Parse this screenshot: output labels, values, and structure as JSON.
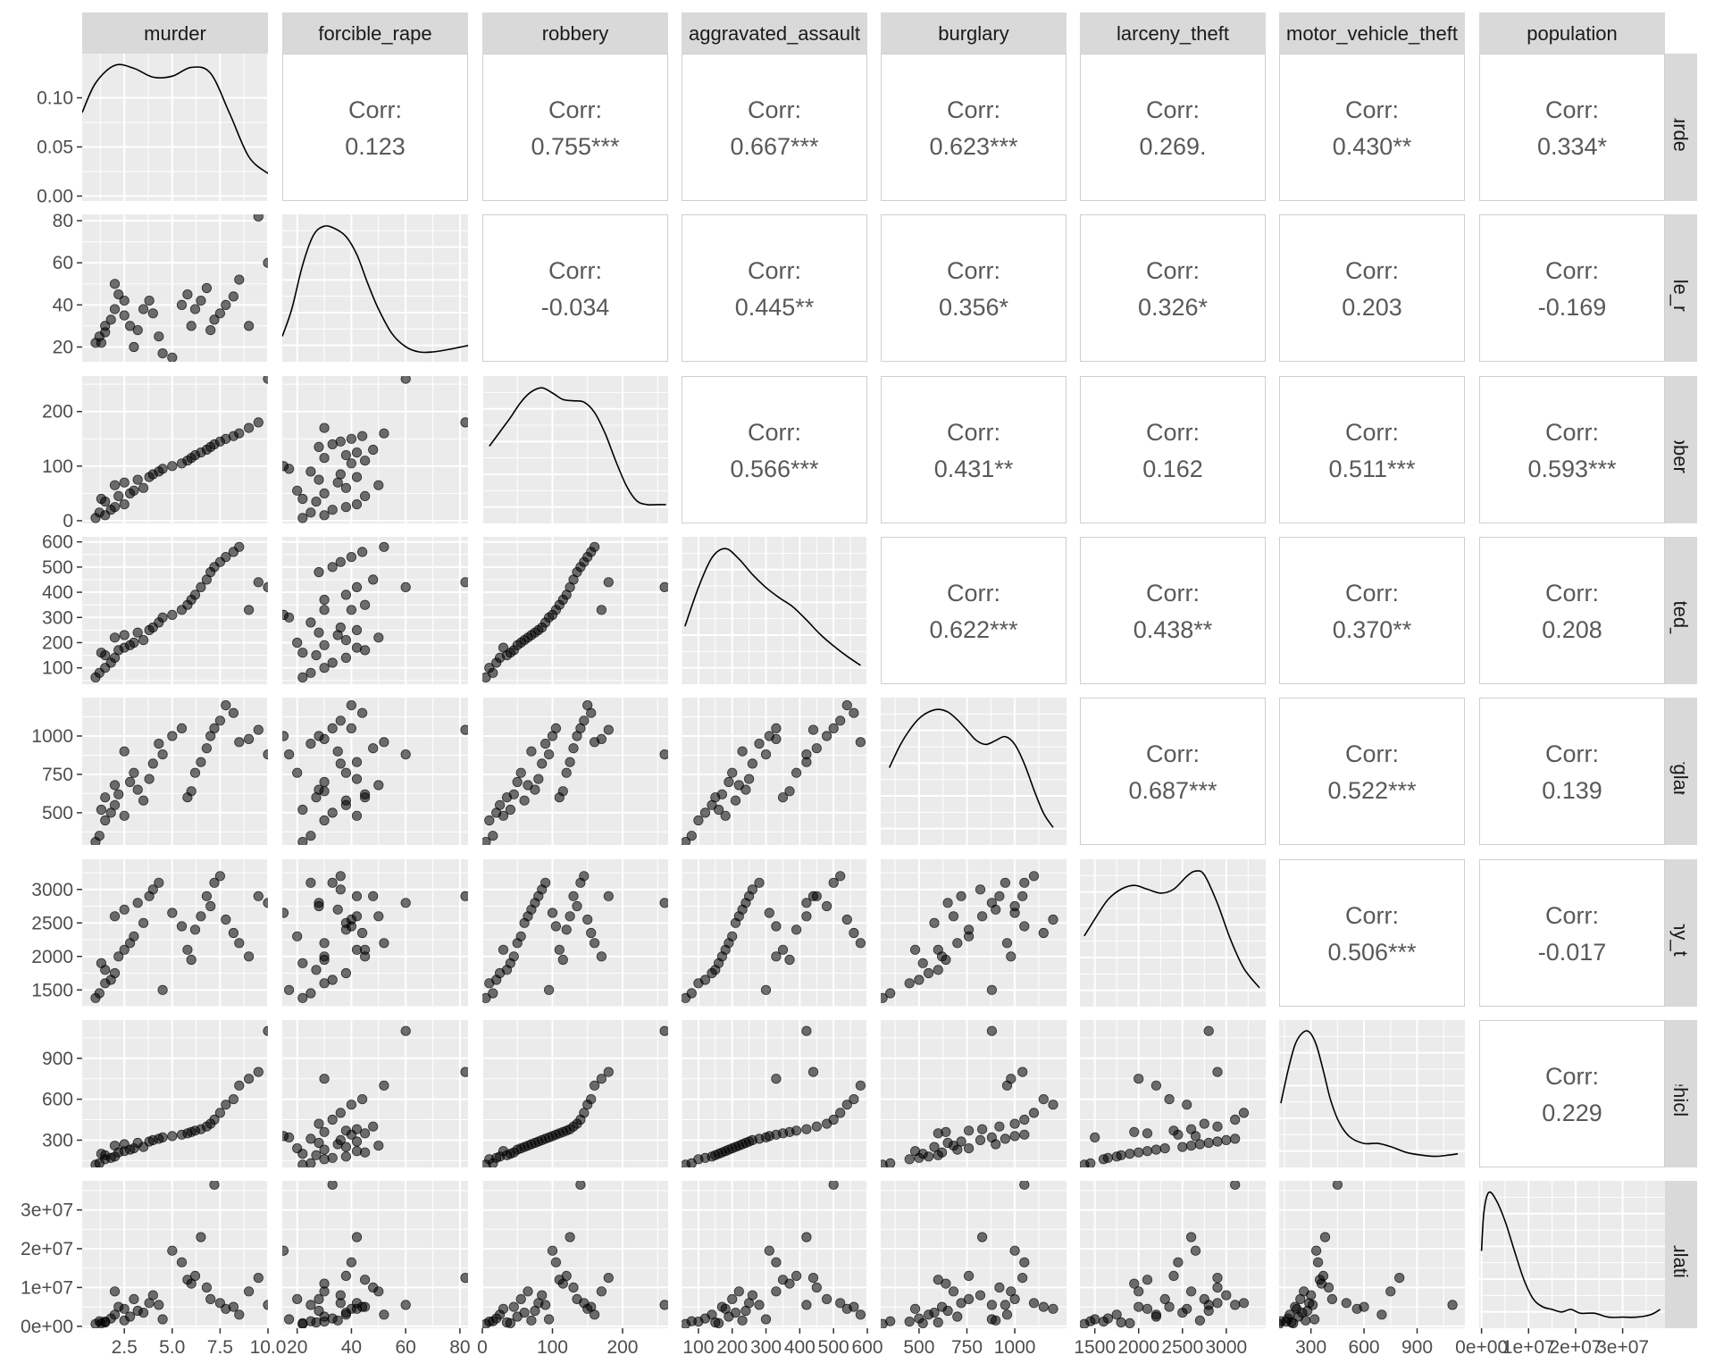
{
  "chart_data": {
    "type": "scatter-matrix",
    "title": "",
    "variables": [
      "murder",
      "forcible_rape",
      "robbery",
      "aggravated_assault",
      "burglary",
      "larceny_theft",
      "motor_vehicle_theft",
      "population"
    ],
    "row_strip_labels": [
      "murder",
      "forcible_rape",
      "robbery",
      "ggravated_assa",
      "burglary",
      "larceny_theft",
      "otor_vehicle_the",
      "population"
    ],
    "corr_label": "Corr:",
    "correlations": [
      [
        "",
        "0.123",
        "0.755***",
        "0.667***",
        "0.623***",
        "0.269.",
        "0.430**",
        "0.334*"
      ],
      [
        "",
        "",
        "-0.034",
        "0.445**",
        "0.356*",
        "0.326*",
        "0.203",
        "-0.169"
      ],
      [
        "",
        "",
        "",
        "0.566***",
        "0.431**",
        "0.162",
        "0.511***",
        "0.593***"
      ],
      [
        "",
        "",
        "",
        "",
        "0.622***",
        "0.438**",
        "0.370**",
        "0.208"
      ],
      [
        "",
        "",
        "",
        "",
        "",
        "0.687***",
        "0.522***",
        "0.139"
      ],
      [
        "",
        "",
        "",
        "",
        "",
        "",
        "0.506***",
        "-0.017"
      ],
      [
        "",
        "",
        "",
        "",
        "",
        "",
        "",
        "0.229"
      ],
      [
        "",
        "",
        "",
        "",
        "",
        "",
        "",
        ""
      ]
    ],
    "x_axes": [
      {
        "range": [
          0.3,
          10.0
        ],
        "ticks": [
          2.5,
          5.0,
          7.5,
          10.0
        ],
        "labels": [
          "2.5",
          "5.0",
          "7.5",
          "10.0"
        ]
      },
      {
        "range": [
          14.5,
          83
        ],
        "ticks": [
          20,
          40,
          60,
          80
        ],
        "labels": [
          "20",
          "40",
          "60",
          "80"
        ]
      },
      {
        "range": [
          0,
          265
        ],
        "ticks": [
          0,
          100,
          200
        ],
        "labels": [
          "0",
          "100",
          "200"
        ]
      },
      {
        "range": [
          50,
          600
        ],
        "ticks": [
          100,
          200,
          300,
          400,
          500,
          600
        ],
        "labels": [
          "100",
          "200",
          "300",
          "400",
          "500",
          "600"
        ]
      },
      {
        "range": [
          300,
          1270
        ],
        "ticks": [
          500,
          750,
          1000
        ],
        "labels": [
          "500",
          "750",
          "1000"
        ]
      },
      {
        "range": [
          1330,
          3450
        ],
        "ticks": [
          1500,
          2000,
          2500,
          3000
        ],
        "labels": [
          "1500",
          "2000",
          "2500",
          "3000"
        ]
      },
      {
        "range": [
          120,
          1170
        ],
        "ticks": [
          300,
          600,
          900
        ],
        "labels": [
          "300",
          "600",
          "900"
        ]
      },
      {
        "range": [
          -500000,
          39000000
        ],
        "ticks": [
          0,
          10000000,
          20000000,
          30000000
        ],
        "labels": [
          "0e+00",
          "1e+07",
          "2e+07",
          "3e+07"
        ]
      }
    ],
    "y_axes": [
      {
        "range": [
          -0.005,
          0.145
        ],
        "ticks": [
          0,
          0.05,
          0.1
        ],
        "labels": [
          "0.00",
          "0.05",
          "0.10"
        ]
      },
      {
        "range": [
          13,
          83
        ],
        "ticks": [
          20,
          40,
          60,
          80
        ],
        "labels": [
          "20",
          "40",
          "60",
          "80"
        ]
      },
      {
        "range": [
          -5,
          265
        ],
        "ticks": [
          0,
          100,
          200
        ],
        "labels": [
          "0",
          "100",
          "200"
        ]
      },
      {
        "range": [
          35,
          620
        ],
        "ticks": [
          100,
          200,
          300,
          400,
          500,
          600
        ],
        "labels": [
          "100",
          "200",
          "300",
          "400",
          "500",
          "600"
        ]
      },
      {
        "range": [
          290,
          1250
        ],
        "ticks": [
          500,
          750,
          1000
        ],
        "labels": [
          "500",
          "750",
          "1000"
        ]
      },
      {
        "range": [
          1250,
          3450
        ],
        "ticks": [
          1500,
          2000,
          2500,
          3000
        ],
        "labels": [
          "1500",
          "2000",
          "2500",
          "3000"
        ]
      },
      {
        "range": [
          100,
          1180
        ],
        "ticks": [
          300,
          600,
          900
        ],
        "labels": [
          "300",
          "600",
          "900"
        ]
      },
      {
        "range": [
          -500000,
          37500000
        ],
        "ticks": [
          0,
          10000000,
          20000000,
          30000000
        ],
        "labels": [
          "0e+00",
          "1e+07",
          "2e+07",
          "3e+07"
        ]
      }
    ],
    "density_curves": [
      {
        "variable": "murder",
        "x": [
          0.3,
          1.0,
          2.0,
          3.0,
          4.0,
          5.0,
          6.0,
          7.0,
          8.0,
          9.0,
          10.0
        ],
        "density": [
          0.085,
          0.115,
          0.133,
          0.13,
          0.121,
          0.122,
          0.131,
          0.125,
          0.084,
          0.04,
          0.023
        ]
      },
      {
        "variable": "forcible_rape",
        "x": [
          14.5,
          18,
          22,
          26,
          30,
          34,
          38,
          42,
          46,
          50,
          55,
          60,
          65,
          70,
          76,
          83
        ],
        "density": [
          0.15,
          0.36,
          0.7,
          0.93,
          1.0,
          0.98,
          0.92,
          0.78,
          0.56,
          0.36,
          0.17,
          0.07,
          0.03,
          0.03,
          0.05,
          0.08
        ]
      },
      {
        "variable": "robbery",
        "x": [
          10,
          25,
          40,
          55,
          70,
          85,
          100,
          115,
          130,
          145,
          160,
          175,
          190,
          205,
          220,
          235,
          250,
          262
        ],
        "density": [
          0.55,
          0.66,
          0.77,
          0.89,
          0.97,
          1.0,
          0.96,
          0.91,
          0.9,
          0.89,
          0.81,
          0.65,
          0.44,
          0.25,
          0.13,
          0.1,
          0.1,
          0.1
        ]
      },
      {
        "variable": "aggravated_assault",
        "x": [
          60,
          100,
          140,
          180,
          220,
          260,
          300,
          340,
          380,
          420,
          460,
          500,
          540,
          580
        ],
        "density": [
          0.4,
          0.7,
          0.93,
          1.0,
          0.92,
          0.8,
          0.7,
          0.62,
          0.55,
          0.45,
          0.34,
          0.25,
          0.17,
          0.1
        ]
      },
      {
        "variable": "burglary",
        "x": [
          345,
          400,
          450,
          500,
          550,
          600,
          650,
          700,
          750,
          800,
          850,
          900,
          950,
          1000,
          1050,
          1100,
          1150,
          1200
        ],
        "density": [
          0.55,
          0.72,
          0.84,
          0.93,
          0.98,
          1.0,
          0.98,
          0.92,
          0.84,
          0.76,
          0.73,
          0.76,
          0.79,
          0.73,
          0.58,
          0.38,
          0.2,
          0.09
        ]
      },
      {
        "variable": "larceny_theft",
        "x": [
          1380,
          1500,
          1650,
          1800,
          1950,
          2100,
          2250,
          2400,
          2550,
          2650,
          2750,
          2900,
          3050,
          3200,
          3380
        ],
        "density": [
          0.5,
          0.63,
          0.78,
          0.86,
          0.89,
          0.86,
          0.83,
          0.86,
          0.96,
          1.0,
          0.97,
          0.75,
          0.47,
          0.25,
          0.1
        ]
      },
      {
        "variable": "motor_vehicle_theft",
        "x": [
          130,
          170,
          210,
          250,
          290,
          330,
          370,
          410,
          460,
          520,
          600,
          680,
          760,
          840,
          920,
          1000,
          1080,
          1130
        ],
        "density": [
          0.45,
          0.7,
          0.9,
          0.99,
          1.0,
          0.9,
          0.7,
          0.48,
          0.3,
          0.19,
          0.14,
          0.14,
          0.11,
          0.07,
          0.05,
          0.04,
          0.05,
          0.06
        ]
      },
      {
        "variable": "population",
        "x": [
          0,
          500000,
          1500000,
          3000000,
          5000000,
          7000000,
          9000000,
          11000000,
          13000000,
          15000000,
          17000000,
          19000000,
          21000000,
          24000000,
          27000000,
          30000000,
          33000000,
          36000000,
          38000000
        ],
        "density": [
          0.55,
          0.85,
          1.0,
          0.95,
          0.78,
          0.55,
          0.33,
          0.18,
          0.12,
          0.1,
          0.08,
          0.1,
          0.07,
          0.07,
          0.04,
          0.04,
          0.04,
          0.06,
          0.1
        ]
      }
    ],
    "observations": {
      "fields": [
        "murder",
        "forcible_rape",
        "robbery",
        "aggravated_assault",
        "burglary",
        "larceny_theft",
        "motor_vehicle_theft",
        "population"
      ],
      "rows": [
        [
          1.0,
          22,
          5,
          62,
          310,
          1380,
          120,
          600000
        ],
        [
          1.2,
          25,
          15,
          80,
          350,
          1450,
          130,
          1300000
        ],
        [
          1.5,
          30,
          10,
          100,
          450,
          1600,
          160,
          1200000
        ],
        [
          1.8,
          33,
          20,
          120,
          500,
          1650,
          170,
          2000000
        ],
        [
          2.0,
          38,
          25,
          140,
          550,
          1750,
          180,
          3000000
        ],
        [
          1.5,
          27,
          35,
          150,
          600,
          1800,
          190,
          1000000
        ],
        [
          1.3,
          22,
          40,
          160,
          520,
          1900,
          200,
          800000
        ],
        [
          2.2,
          45,
          45,
          170,
          620,
          2000,
          210,
          5000000
        ],
        [
          2.5,
          42,
          30,
          180,
          480,
          2100,
          220,
          4500000
        ],
        [
          2.8,
          30,
          50,
          190,
          700,
          2200,
          230,
          2500000
        ],
        [
          3.0,
          20,
          55,
          200,
          760,
          2300,
          240,
          7000000
        ],
        [
          3.5,
          38,
          60,
          210,
          580,
          2500,
          250,
          3500000
        ],
        [
          2.0,
          50,
          65,
          220,
          680,
          2600,
          260,
          9000000
        ],
        [
          2.5,
          35,
          70,
          230,
          900,
          2700,
          270,
          1500000
        ],
        [
          3.2,
          28,
          75,
          240,
          650,
          2800,
          280,
          4000000
        ],
        [
          3.8,
          42,
          80,
          250,
          720,
          2900,
          290,
          6000000
        ],
        [
          4.0,
          36,
          85,
          260,
          820,
          3000,
          300,
          8000000
        ],
        [
          4.3,
          25,
          90,
          280,
          950,
          3100,
          310,
          5500000
        ],
        [
          4.5,
          17,
          95,
          300,
          880,
          1500,
          320,
          1800000
        ],
        [
          5.0,
          15,
          100,
          310,
          1000,
          2650,
          330,
          19500000
        ],
        [
          5.5,
          40,
          105,
          330,
          1050,
          2450,
          340,
          16500000
        ],
        [
          5.8,
          45,
          110,
          350,
          600,
          2100,
          350,
          12000000
        ],
        [
          6.0,
          30,
          115,
          370,
          640,
          1950,
          360,
          11000000
        ],
        [
          6.2,
          38,
          120,
          390,
          760,
          2400,
          370,
          13000000
        ],
        [
          6.5,
          42,
          125,
          420,
          830,
          2600,
          380,
          23000000
        ],
        [
          6.8,
          48,
          130,
          450,
          920,
          2900,
          400,
          10000000
        ],
        [
          7.0,
          28,
          135,
          480,
          1000,
          2750,
          420,
          7000000
        ],
        [
          7.2,
          33,
          140,
          500,
          1050,
          3100,
          450,
          36500000
        ],
        [
          7.5,
          36,
          145,
          520,
          1100,
          3200,
          500,
          6000000
        ],
        [
          7.8,
          40,
          150,
          540,
          1200,
          2550,
          560,
          4500000
        ],
        [
          8.2,
          44,
          155,
          560,
          1150,
          2350,
          600,
          5000000
        ],
        [
          8.5,
          52,
          160,
          580,
          960,
          2200,
          700,
          3000000
        ],
        [
          9.0,
          30,
          170,
          330,
          980,
          2000,
          750,
          9000000
        ],
        [
          9.5,
          82,
          180,
          440,
          1040,
          2900,
          800,
          12500000
        ],
        [
          10.0,
          60,
          260,
          420,
          880,
          2800,
          1100,
          5500000
        ]
      ]
    }
  }
}
